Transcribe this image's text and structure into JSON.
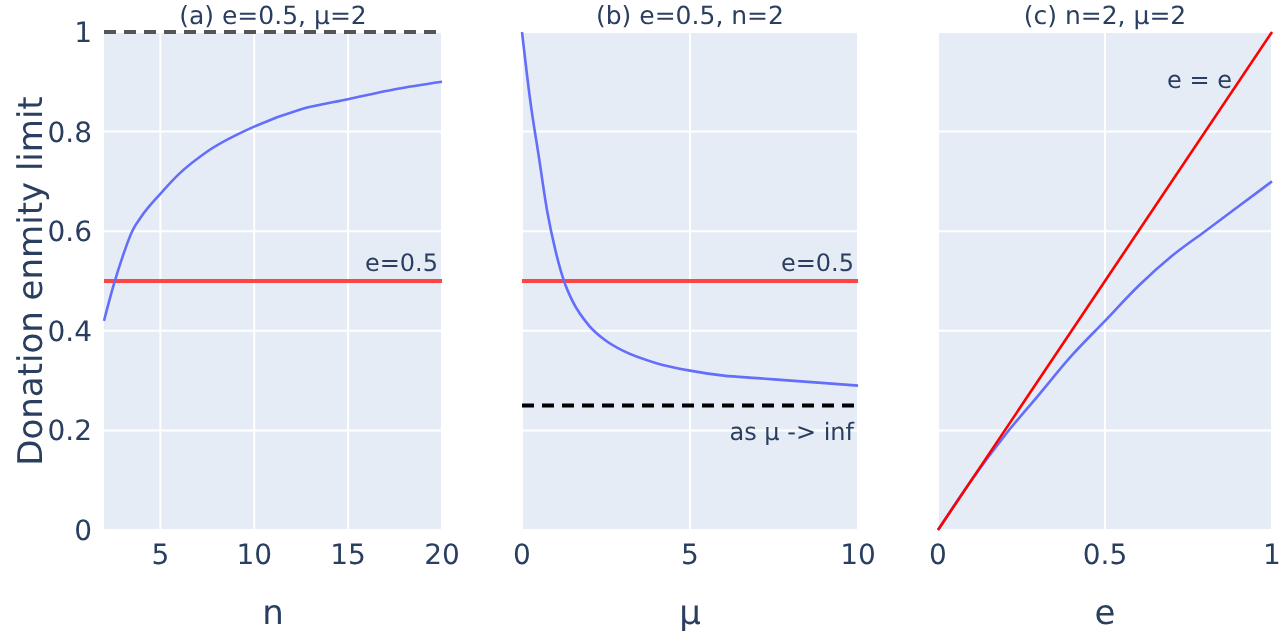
{
  "chart_data": [
    {
      "type": "line",
      "title": "(a) e=0.5, μ=2",
      "xlabel": "n",
      "ylabel": "Donation enmity limit",
      "xlim": [
        2,
        20
      ],
      "xticks": [
        5,
        10,
        15,
        20
      ],
      "ylim": [
        0,
        1
      ],
      "yticks": [
        0,
        0.2,
        0.4,
        0.6,
        0.8,
        1
      ],
      "grid": true,
      "series": [
        {
          "color": "#636efa",
          "x": [
            2,
            2.5,
            3,
            3.5,
            4,
            5,
            6,
            7.5,
            10,
            12.5,
            15,
            17.5,
            20
          ],
          "values": [
            0.42,
            0.49,
            0.55,
            0.6,
            0.63,
            0.675,
            0.715,
            0.76,
            0.81,
            0.845,
            0.865,
            0.885,
            0.9
          ]
        }
      ],
      "ref_lines": [
        {
          "axis": "y",
          "value": 1,
          "color": "#555555",
          "line_style": "dashed"
        },
        {
          "axis": "y",
          "value": 0.5,
          "label": "e=0.5",
          "color": "#ff4444",
          "line_style": "solid"
        }
      ]
    },
    {
      "type": "line",
      "title": "(b) e=0.5, n=2",
      "xlabel": "μ",
      "xlim": [
        0,
        10
      ],
      "xticks": [
        0,
        5,
        10
      ],
      "ylim": [
        0,
        1
      ],
      "yticks": [
        0,
        0.2,
        0.4,
        0.6,
        0.8,
        1
      ],
      "grid": true,
      "tick_labels": "x",
      "series": [
        {
          "color": "#636efa",
          "x": [
            0,
            0.25,
            0.5,
            0.75,
            1,
            1.25,
            1.5,
            2,
            2.5,
            3,
            4,
            5,
            6,
            7,
            8,
            10
          ],
          "values": [
            1,
            0.86,
            0.75,
            0.64,
            0.56,
            0.5,
            0.46,
            0.41,
            0.38,
            0.36,
            0.335,
            0.32,
            0.31,
            0.305,
            0.3,
            0.29
          ]
        }
      ],
      "ref_lines": [
        {
          "axis": "y",
          "value": 0.5,
          "label": "e=0.5",
          "color": "#ff4444",
          "line_style": "solid"
        },
        {
          "axis": "y",
          "value": 0.25,
          "label": "as μ -> inf",
          "color": "#000000",
          "line_style": "dashed"
        }
      ]
    },
    {
      "type": "line",
      "title": "(c) n=2, μ=2",
      "xlabel": "e",
      "xlim": [
        0,
        1
      ],
      "xticks": [
        0,
        0.5,
        1
      ],
      "ylim": [
        0,
        1
      ],
      "yticks": [
        0,
        0.2,
        0.4,
        0.6,
        0.8,
        1
      ],
      "grid": true,
      "tick_labels": "x",
      "series": [
        {
          "color": "#636efa",
          "x": [
            0,
            0.1,
            0.2,
            0.3,
            0.4,
            0.5,
            0.6,
            0.7,
            0.8,
            0.9,
            1
          ],
          "values": [
            0,
            0.1,
            0.19,
            0.27,
            0.35,
            0.42,
            0.49,
            0.55,
            0.6,
            0.65,
            0.7
          ]
        },
        {
          "name": "e = e",
          "color": "#ff0000",
          "x": [
            0,
            1
          ],
          "values": [
            0,
            1
          ]
        }
      ]
    }
  ]
}
